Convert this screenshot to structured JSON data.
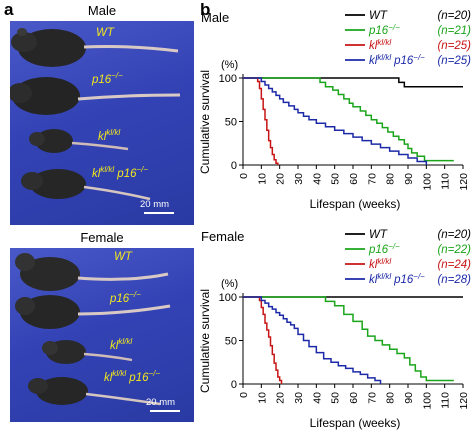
{
  "panel_a": {
    "letter": "a",
    "male": {
      "title": "Male",
      "labels": [
        "WT",
        "p16",
        "kl",
        "kl",
        "p16"
      ],
      "label_sups": [
        "",
        "−/−",
        "kl/kl",
        "kl/kl",
        "−/−"
      ],
      "scale": "20 mm"
    },
    "female": {
      "title": "Female",
      "labels": [
        "WT",
        "p16",
        "kl",
        "kl",
        "p16"
      ],
      "label_sups": [
        "",
        "−/−",
        "kl/kl",
        "kl/kl",
        "−/−"
      ],
      "scale": "20 mm"
    }
  },
  "panel_b": {
    "letter": "b",
    "colors": {
      "WT": "#000000",
      "p16": "#1aa51a",
      "kl": "#c81414",
      "klp16": "#1c2aa8"
    }
  },
  "chart_data": [
    {
      "type": "line",
      "subtitle": "Male",
      "xlabel": "Lifespan (weeks)",
      "ylabel": "Cumulative survival",
      "yunit": "(%)",
      "xlim": [
        0,
        120
      ],
      "ylim": [
        0,
        100
      ],
      "xticks": [
        0,
        10,
        20,
        30,
        40,
        50,
        60,
        70,
        80,
        90,
        100,
        110,
        120
      ],
      "yticks": [
        0,
        50,
        100
      ],
      "legend": "top-right",
      "series": [
        {
          "name": "WT",
          "sup": "",
          "n": "(n=20)",
          "color": "#000000",
          "x": [
            0,
            85,
            85,
            88,
            88,
            120
          ],
          "y": [
            100,
            100,
            95,
            95,
            90,
            90
          ]
        },
        {
          "name": "p16",
          "sup": "−/−",
          "n": "(n=21)",
          "color": "#1aa51a",
          "x": [
            0,
            40,
            42,
            45,
            49,
            52,
            55,
            58,
            60,
            64,
            67,
            70,
            73,
            76,
            79,
            82,
            85,
            88,
            90,
            92,
            95,
            99,
            103,
            106,
            110,
            115
          ],
          "y": [
            100,
            100,
            95,
            90,
            86,
            81,
            76,
            71,
            67,
            62,
            57,
            52,
            48,
            43,
            38,
            33,
            29,
            24,
            19,
            14,
            10,
            5,
            5,
            5,
            5,
            5
          ]
        },
        {
          "name": "kl",
          "sup": "kl/kl",
          "n": "(n=25)",
          "color": "#c81414",
          "x": [
            0,
            6,
            8,
            9,
            10,
            11,
            12,
            13,
            14,
            15,
            16,
            17,
            18,
            19
          ],
          "y": [
            100,
            100,
            96,
            88,
            76,
            64,
            52,
            40,
            28,
            20,
            12,
            6,
            2,
            0
          ]
        },
        {
          "name": "kl",
          "sup": "kl/kl",
          "name2": "p16",
          "sup2": "−/−",
          "n": "(n=25)",
          "color": "#1c2aa8",
          "x": [
            0,
            9,
            10,
            12,
            14,
            16,
            18,
            20,
            22,
            25,
            28,
            30,
            33,
            36,
            40,
            45,
            50,
            55,
            60,
            65,
            70,
            75,
            80,
            85,
            90,
            95,
            100
          ],
          "y": [
            100,
            100,
            96,
            92,
            88,
            84,
            80,
            76,
            72,
            68,
            64,
            60,
            56,
            52,
            48,
            44,
            40,
            36,
            32,
            28,
            24,
            20,
            16,
            12,
            8,
            4,
            0
          ]
        }
      ]
    },
    {
      "type": "line",
      "subtitle": "Female",
      "xlabel": "Lifespan (weeks)",
      "ylabel": "Cumulative survival",
      "yunit": "(%)",
      "xlim": [
        0,
        120
      ],
      "ylim": [
        0,
        100
      ],
      "xticks": [
        0,
        10,
        20,
        30,
        40,
        50,
        60,
        70,
        80,
        90,
        100,
        110,
        120
      ],
      "yticks": [
        0,
        50,
        100
      ],
      "legend": "top-right",
      "series": [
        {
          "name": "WT",
          "sup": "",
          "n": "(n=20)",
          "color": "#000000",
          "x": [
            0,
            120
          ],
          "y": [
            100,
            100
          ]
        },
        {
          "name": "p16",
          "sup": "−/−",
          "n": "(n=22)",
          "color": "#1aa51a",
          "x": [
            0,
            40,
            45,
            50,
            55,
            60,
            65,
            68,
            72,
            76,
            80,
            84,
            88,
            91,
            94,
            97,
            100,
            105,
            115
          ],
          "y": [
            100,
            100,
            95,
            90,
            80,
            72,
            63,
            55,
            50,
            45,
            40,
            35,
            30,
            22,
            15,
            8,
            4,
            4,
            4
          ]
        },
        {
          "name": "kl",
          "sup": "kl/kl",
          "n": "(n=24)",
          "color": "#c81414",
          "x": [
            0,
            7,
            9,
            10,
            11,
            12,
            13,
            14,
            15,
            16,
            17,
            18,
            19,
            20,
            21
          ],
          "y": [
            100,
            100,
            96,
            88,
            80,
            70,
            62,
            54,
            44,
            34,
            24,
            16,
            8,
            4,
            0
          ]
        },
        {
          "name": "kl",
          "sup": "kl/kl",
          "name2": "p16",
          "sup2": "−/−",
          "n": "(n=28)",
          "color": "#1c2aa8",
          "x": [
            0,
            8,
            10,
            12,
            14,
            16,
            18,
            20,
            22,
            24,
            26,
            28,
            30,
            33,
            36,
            40,
            44,
            48,
            52,
            56,
            60,
            64,
            68,
            72,
            75
          ],
          "y": [
            100,
            100,
            96,
            93,
            89,
            86,
            82,
            79,
            75,
            71,
            68,
            64,
            57,
            50,
            43,
            36,
            29,
            25,
            21,
            18,
            14,
            11,
            7,
            4,
            0
          ]
        }
      ]
    }
  ]
}
